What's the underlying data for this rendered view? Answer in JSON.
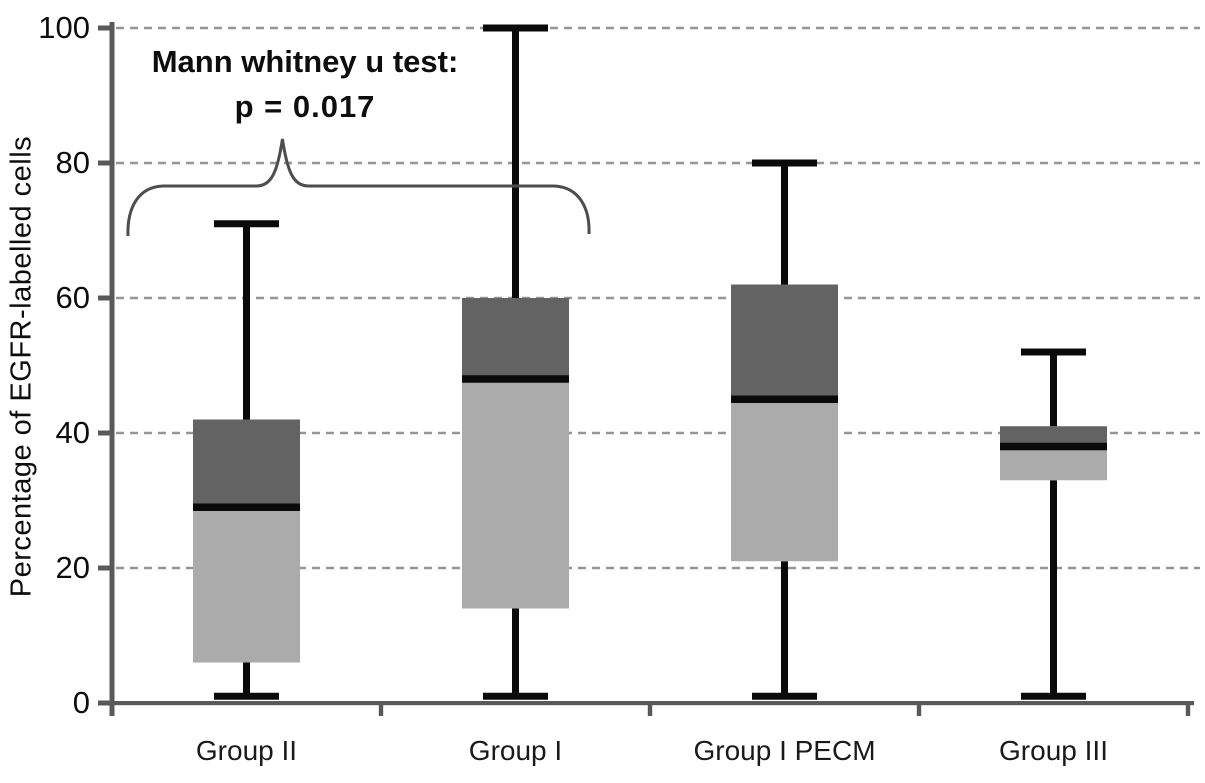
{
  "chart_data": {
    "type": "box",
    "title": "",
    "xlabel": "",
    "ylabel": "Percentage of EGFR-labelled cells",
    "ylim": [
      0,
      100
    ],
    "yticks": [
      0,
      20,
      40,
      60,
      80,
      100
    ],
    "grid": "horizontal dashed gridlines at every y tick",
    "legend": "none",
    "categories": [
      "Group II",
      "Group I",
      "Group I PECM",
      "Group III"
    ],
    "series": [
      {
        "name": "Group II",
        "whisker_low": 1,
        "q1": 6,
        "median": 29,
        "q3": 42,
        "whisker_high": 71
      },
      {
        "name": "Group I",
        "whisker_low": 1,
        "q1": 14,
        "median": 48,
        "q3": 60,
        "whisker_high": 100
      },
      {
        "name": "Group I PECM",
        "whisker_low": 1,
        "q1": 21,
        "median": 45,
        "q3": 62,
        "whisker_high": 80
      },
      {
        "name": "Group III",
        "whisker_low": 1,
        "q1": 33,
        "median": 38,
        "q3": 41,
        "whisker_high": 52
      }
    ],
    "annotation": {
      "line1": "Mann whitney u test:",
      "line2": "p  =  0.017",
      "brace_between": [
        "Group II",
        "Group I"
      ]
    },
    "colors": {
      "box_upper": "#636363",
      "box_lower": "#ababab",
      "median": "#0a0a0a",
      "whisker": "#0a0a0a",
      "axis": "#595959",
      "gridline": "#969696",
      "brace": "#4d4d4d",
      "text": "#0d0d0d",
      "background": "#ffffff"
    }
  }
}
